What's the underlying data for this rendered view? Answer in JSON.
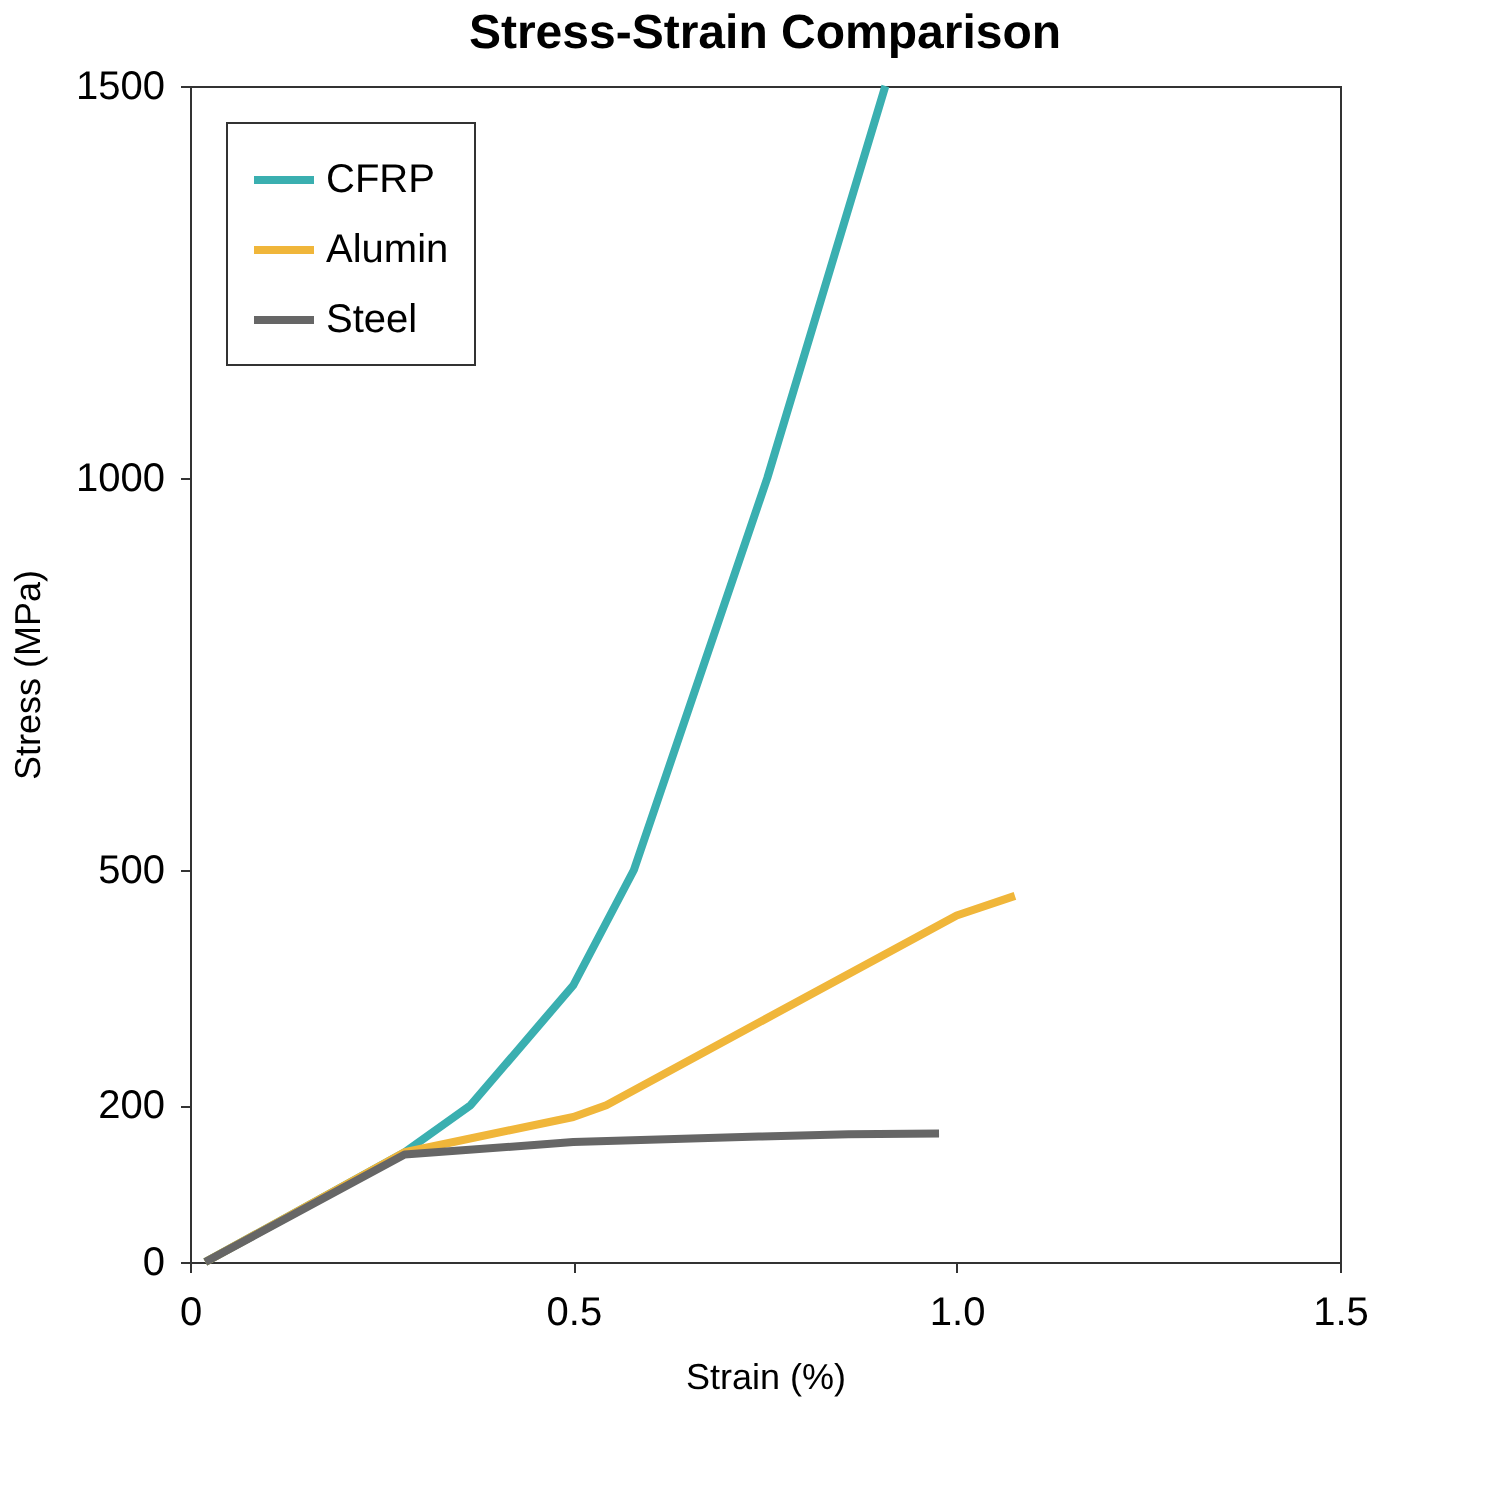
{
  "chart_data": {
    "type": "line",
    "title": "Stress-Strain Comparison",
    "xlabel": "Strain (%)",
    "ylabel": "Stress (MPa)",
    "xlim": [
      0,
      1.5
    ],
    "xticks": [
      0,
      0.5,
      {
        "value": 1.0,
        "label": "1.0"
      },
      1.5
    ],
    "ylim": [
      0,
      1500
    ],
    "yticks": [
      0,
      200,
      500,
      1000,
      1500
    ],
    "grid": false,
    "legend": "top left",
    "marker": "none",
    "line_style": "solid",
    "series": [
      {
        "name": "CFRP",
        "color": "#3aafb0",
        "x": [
          0.02,
          0.28,
          0.366,
          0.5,
          0.579,
          0.753,
          0.907
        ],
        "values": [
          0,
          140,
          200,
          353,
          500,
          1000,
          1500
        ]
      },
      {
        "name": "Alumin",
        "color": "#f0b63a",
        "x": [
          0.02,
          0.28,
          0.5,
          0.543,
          1.0,
          1.076
        ],
        "values": [
          0,
          140,
          185,
          200,
          442,
          467
        ]
      },
      {
        "name": "Steel",
        "color": "#666666",
        "x": [
          0.02,
          0.28,
          0.5,
          0.742,
          0.859,
          0.977
        ],
        "values": [
          0,
          137,
          153,
          160,
          163,
          164
        ]
      }
    ]
  }
}
